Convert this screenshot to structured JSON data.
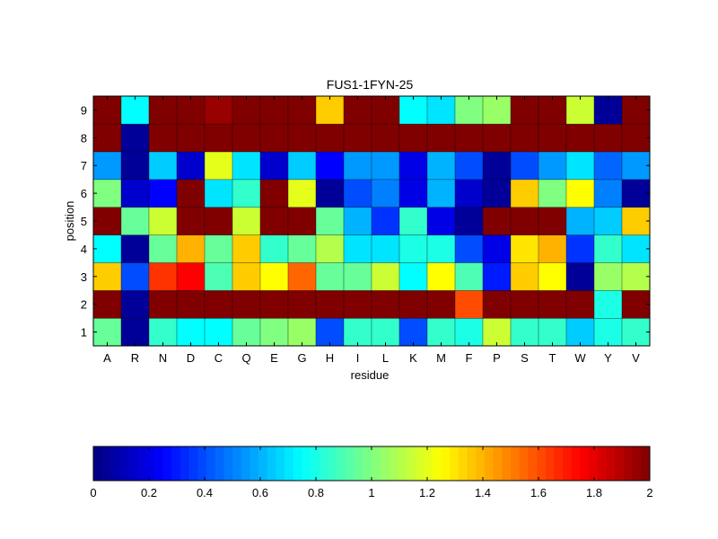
{
  "chart_data": {
    "type": "heatmap",
    "title": "FUS1-1FYN-25",
    "xlabel": "residue",
    "ylabel": "position",
    "x_categories": [
      "A",
      "R",
      "N",
      "D",
      "C",
      "Q",
      "E",
      "G",
      "H",
      "I",
      "L",
      "K",
      "M",
      "F",
      "P",
      "S",
      "T",
      "W",
      "Y",
      "V"
    ],
    "y_categories": [
      "1",
      "2",
      "3",
      "4",
      "5",
      "6",
      "7",
      "8",
      "9"
    ],
    "values": [
      [
        0.95,
        0.05,
        0.85,
        0.75,
        0.75,
        0.95,
        1.0,
        1.05,
        0.4,
        0.85,
        0.85,
        0.4,
        0.85,
        0.8,
        1.15,
        0.85,
        0.85,
        0.65,
        0.8,
        0.85
      ],
      [
        2.0,
        0.05,
        2.0,
        2.0,
        2.0,
        2.0,
        2.0,
        2.0,
        2.0,
        2.0,
        2.0,
        2.0,
        2.0,
        1.6,
        2.0,
        2.0,
        2.0,
        2.0,
        0.8,
        2.0
      ],
      [
        1.35,
        0.4,
        1.65,
        1.75,
        0.9,
        1.35,
        1.25,
        1.55,
        0.95,
        0.95,
        1.15,
        0.75,
        1.25,
        0.9,
        0.3,
        1.35,
        1.25,
        0.05,
        1.05,
        1.1
      ],
      [
        0.75,
        0.05,
        0.95,
        1.4,
        0.95,
        1.35,
        0.85,
        0.95,
        1.1,
        0.7,
        0.7,
        0.8,
        0.8,
        0.4,
        0.2,
        1.3,
        1.4,
        0.35,
        0.85,
        0.7
      ],
      [
        2.0,
        0.95,
        1.15,
        2.0,
        2.0,
        1.15,
        2.0,
        2.0,
        0.95,
        0.6,
        0.35,
        0.85,
        0.2,
        0.05,
        2.0,
        2.0,
        2.0,
        0.6,
        0.65,
        1.35
      ],
      [
        1.0,
        0.15,
        0.25,
        2.0,
        0.7,
        0.85,
        2.0,
        1.2,
        0.05,
        0.4,
        0.5,
        0.2,
        0.6,
        0.15,
        0.05,
        1.35,
        1.0,
        1.25,
        0.5,
        0.05
      ],
      [
        0.55,
        0.05,
        0.65,
        0.15,
        1.2,
        0.7,
        0.15,
        0.65,
        0.25,
        0.55,
        0.55,
        0.2,
        0.6,
        0.4,
        0.05,
        0.4,
        0.55,
        0.7,
        0.45,
        0.55
      ],
      [
        2.0,
        0.05,
        2.0,
        2.0,
        2.0,
        2.0,
        2.0,
        2.0,
        2.0,
        2.0,
        2.0,
        2.0,
        2.0,
        2.0,
        2.0,
        2.0,
        2.0,
        2.0,
        2.0,
        2.0
      ],
      [
        2.0,
        0.75,
        2.0,
        2.0,
        1.95,
        2.0,
        2.0,
        2.0,
        1.35,
        2.0,
        2.0,
        0.75,
        0.7,
        1.0,
        1.05,
        2.0,
        2.0,
        1.15,
        0.05,
        2.0
      ]
    ],
    "colorbar": {
      "min": 0,
      "max": 2,
      "colormap": "jet",
      "tick_values": [
        0,
        0.2,
        0.4,
        0.6,
        0.8,
        1,
        1.2,
        1.4,
        1.6,
        1.8,
        2
      ],
      "tick_labels": [
        "0",
        "0.2",
        "0.4",
        "0.6",
        "0.8",
        "1",
        "1.2",
        "1.4",
        "1.6",
        "1.8",
        "2"
      ]
    },
    "grid": false,
    "legend": "colorbar-bottom"
  }
}
